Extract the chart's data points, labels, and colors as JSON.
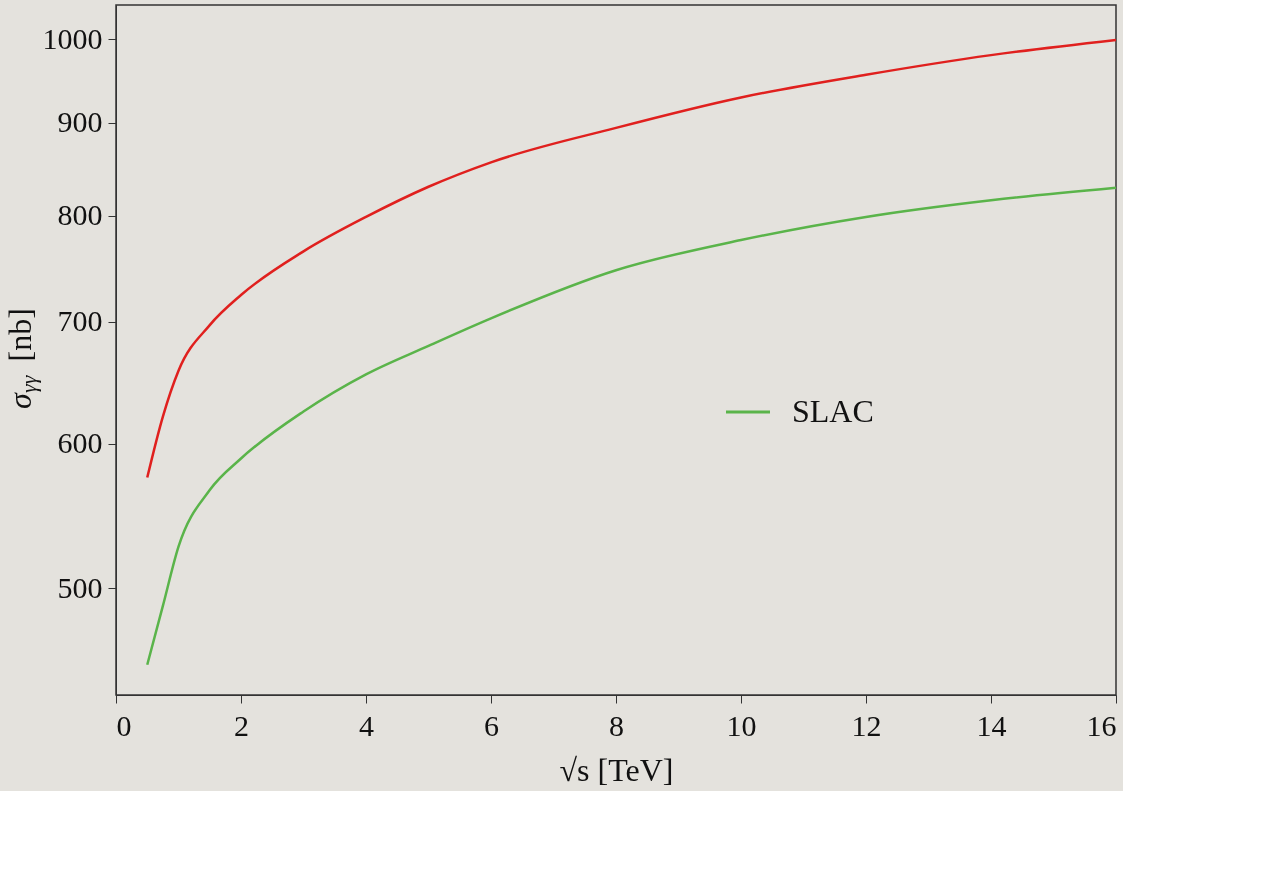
{
  "chart_data": {
    "type": "line",
    "xlabel": "√s [TeV]",
    "ylabel": "σ$_{γγ}$ [nb]",
    "x": [
      0.5,
      0.75,
      1,
      1.5,
      2,
      3,
      4,
      5,
      6,
      8,
      10,
      12,
      14,
      16
    ],
    "series": [
      {
        "color": "#e0201e",
        "values": [
          575,
          621,
          658,
          697,
          724,
          765,
          799,
          830,
          856,
          894,
          929,
          956,
          980,
          999
        ]
      },
      {
        "name": "SLAC",
        "color": "#5ab44a",
        "values": [
          454,
          489,
          527,
          566,
          589,
          625,
          655,
          679,
          703,
          747,
          776,
          799,
          816,
          829
        ]
      }
    ],
    "xlim": [
      0,
      16
    ],
    "xticks": [
      0,
      2,
      4,
      6,
      8,
      10,
      12,
      14,
      16
    ],
    "ylim": [
      437,
      1044
    ],
    "yticks": [
      500,
      600,
      700,
      800,
      900,
      1000
    ],
    "log": "y",
    "grid": false,
    "legend": "right",
    "marker": "none",
    "line_style": "solid"
  }
}
